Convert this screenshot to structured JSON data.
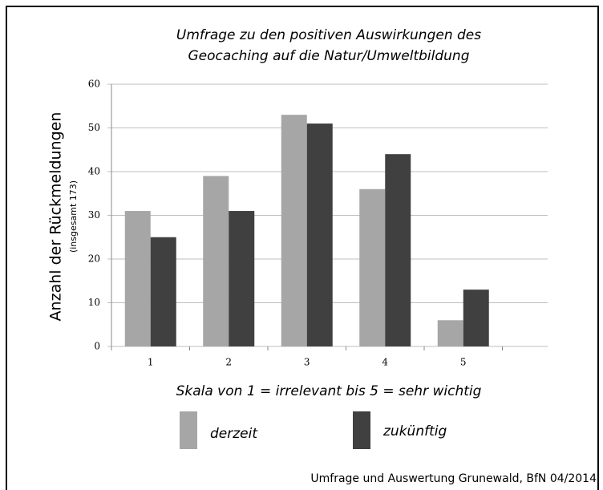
{
  "chart_data": {
    "type": "bar",
    "title": [
      "Umfrage zu den positiven Auswirkungen des",
      "Geocaching auf die Natur/Umweltbildung"
    ],
    "ylabel": "Anzahl der Rückmeldungen",
    "ylabel_note": "(insgesamt 173)",
    "xlabel": "Skala von 1 = irrelevant bis 5 = sehr wichtig",
    "categories": [
      "1",
      "2",
      "3",
      "4",
      "5"
    ],
    "series": [
      {
        "name": "derzeit",
        "color": "#a6a6a6",
        "values": [
          31,
          39,
          53,
          36,
          6
        ]
      },
      {
        "name": "zukünftig",
        "color": "#404040",
        "values": [
          25,
          31,
          51,
          44,
          13
        ]
      }
    ],
    "ylim": [
      0,
      60
    ],
    "yticks": [
      0,
      10,
      20,
      30,
      40,
      50,
      60
    ],
    "grid": true,
    "source": "Umfrage und Auswertung Grunewald, BfN  04/2014"
  }
}
